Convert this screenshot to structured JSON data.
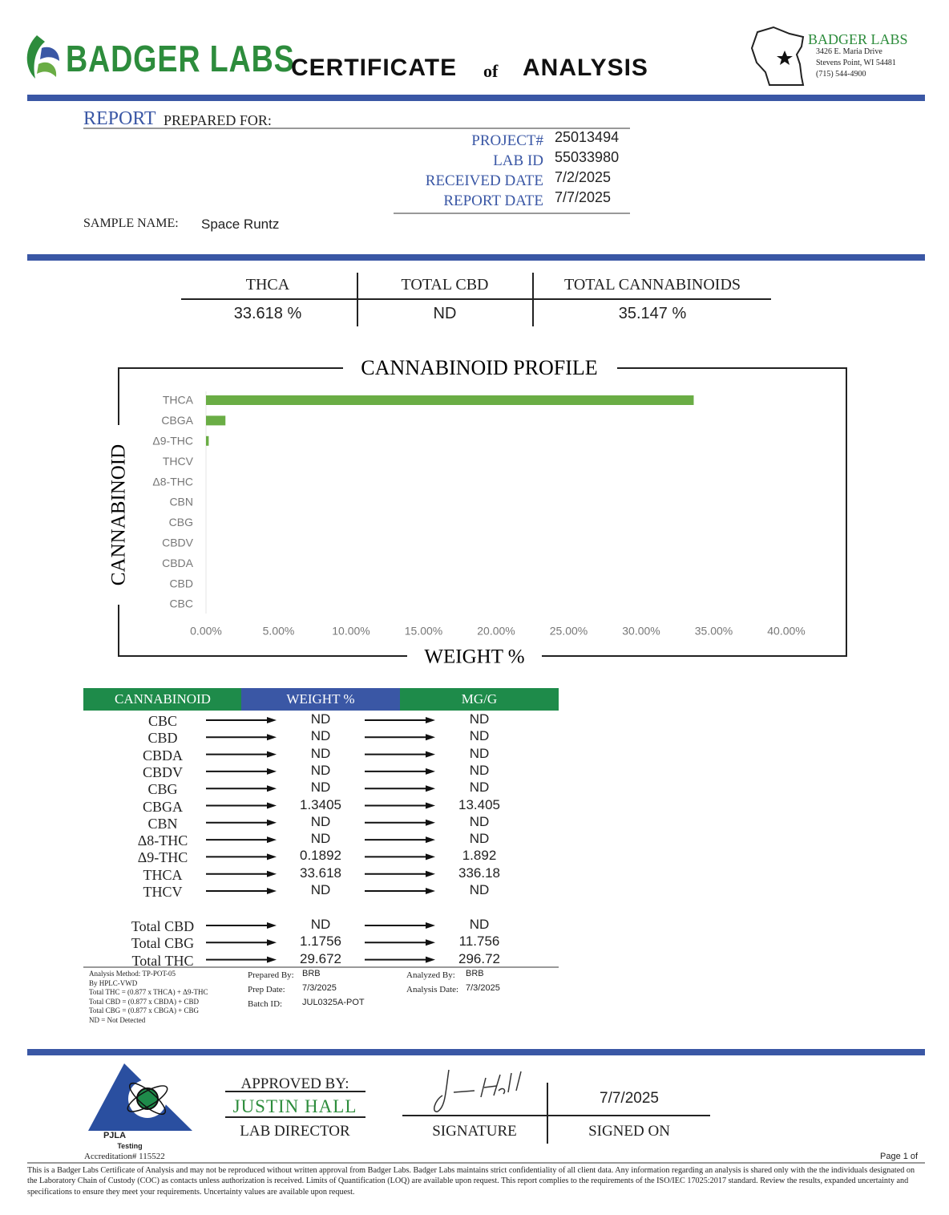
{
  "header": {
    "brand": "BADGER LABS",
    "title_main": "CERTIFICATE",
    "title_of": "of",
    "title_end": "ANALYSIS",
    "lab_name": "BADGER LABS",
    "address": [
      "3426 E. Maria Drive",
      "Stevens Point, WI 54481",
      "(715) 544-4900"
    ]
  },
  "report": {
    "report_label": "REPORT",
    "prepared_for": "PREPARED FOR:",
    "fields": [
      {
        "label": "PROJECT#",
        "value": "25013494"
      },
      {
        "label": "LAB ID",
        "value": "55033980"
      },
      {
        "label": "RECEIVED DATE",
        "value": "7/2/2025"
      },
      {
        "label": "REPORT DATE",
        "value": "7/7/2025"
      }
    ],
    "sample_label": "SAMPLE NAME:",
    "sample_name": "Space Runtz"
  },
  "summary": [
    {
      "label": "THCA",
      "value": "33.618 %"
    },
    {
      "label": "TOTAL CBD",
      "value": "ND"
    },
    {
      "label": "TOTAL CANNABINOIDS",
      "value": "35.147 %"
    }
  ],
  "chart_data": {
    "type": "bar",
    "orientation": "horizontal",
    "title": "CANNABINOID PROFILE",
    "x_label": "WEIGHT %",
    "y_label": "CANNABINOID",
    "categories": [
      "THCA",
      "CBGA",
      "Δ9-THC",
      "THCV",
      "Δ8-THC",
      "CBN",
      "CBG",
      "CBDV",
      "CBDA",
      "CBD",
      "CBC"
    ],
    "values": [
      33.618,
      1.3405,
      0.1892,
      0,
      0,
      0,
      0,
      0,
      0,
      0,
      0
    ],
    "color": "#6aad45",
    "xlim": [
      0,
      40
    ],
    "xticks": [
      {
        "value": 0,
        "label": "0.00%"
      },
      {
        "value": 5,
        "label": "5.00%"
      },
      {
        "value": 10,
        "label": "10.00%"
      },
      {
        "value": 15,
        "label": "15.00%"
      },
      {
        "value": 20,
        "label": "20.00%"
      },
      {
        "value": 25,
        "label": "25.00%"
      },
      {
        "value": 30,
        "label": "30.00%"
      },
      {
        "value": 35,
        "label": "35.00%"
      },
      {
        "value": 40,
        "label": "40.00%"
      }
    ],
    "grid": false
  },
  "table": {
    "headers": [
      "CANNABINOID",
      "WEIGHT %",
      "MG/G"
    ],
    "rows": [
      [
        "CBC",
        "ND",
        "ND"
      ],
      [
        "CBD",
        "ND",
        "ND"
      ],
      [
        "CBDA",
        "ND",
        "ND"
      ],
      [
        "CBDV",
        "ND",
        "ND"
      ],
      [
        "CBG",
        "ND",
        "ND"
      ],
      [
        "CBGA",
        "1.3405",
        "13.405"
      ],
      [
        "CBN",
        "ND",
        "ND"
      ],
      [
        "Δ8-THC",
        "ND",
        "ND"
      ],
      [
        "Δ9-THC",
        "0.1892",
        "1.892"
      ],
      [
        "THCA",
        "33.618",
        "336.18"
      ],
      [
        "THCV",
        "ND",
        "ND"
      ]
    ],
    "totals": [
      [
        "Total CBD",
        "ND",
        "ND"
      ],
      [
        "Total CBG",
        "1.1756",
        "11.756"
      ],
      [
        "Total THC",
        "29.672",
        "296.72"
      ]
    ]
  },
  "method_notes": [
    "Analysis Method: TP-POT-05",
    "By HPLC-VWD",
    "Total THC = (0.877 x  THCA) + Δ9-THC",
    "Total CBD = (0.877 x  CBDA) + CBD",
    "Total CBG = (0.877 x  CBGA) + CBG",
    "ND = Not Detected"
  ],
  "prep": [
    {
      "label": "Prepared By:",
      "value": "BRB"
    },
    {
      "label": "Prep Date:",
      "value": "7/3/2025"
    },
    {
      "label": "Batch ID:",
      "value": "JUL0325A-POT"
    }
  ],
  "analysis": [
    {
      "label": "Analyzed By:",
      "value": "BRB"
    },
    {
      "label": "Analysis Date:",
      "value": "7/3/2025"
    }
  ],
  "approval": {
    "approved_by": "APPROVED BY:",
    "name": "JUSTIN HALL",
    "role": "LAB DIRECTOR",
    "signature_label": "SIGNATURE",
    "signed_on_label": "SIGNED ON",
    "signed_on": "7/7/2025"
  },
  "accreditation": {
    "org": "PJLA",
    "sub": "Testing",
    "number": "Accreditation# 115522"
  },
  "footer": {
    "page": "Page 1 of",
    "disclaimer": "This is a Badger Labs Certificate of Analysis and may not be reproduced without written approval from Badger Labs. Badger Labs maintains strict confidentiality of all client data. Any information regarding an analysis is shared only with the the individuals designated on the Laboratory Chain of Custody (COC) as contacts unless authorization is received. Limits of Quantification (LOQ) are available upon request. This report complies to the requirements of the ISO/IEC 17025:2017 standard. Review the results, expanded uncertainty and specifications to ensure they meet your requirements. Uncertainty values are available upon request."
  }
}
